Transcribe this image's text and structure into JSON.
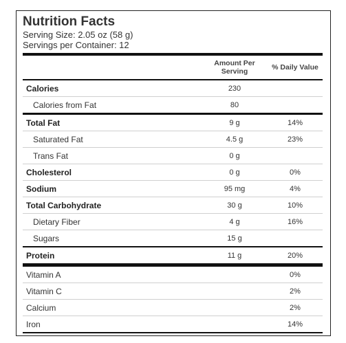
{
  "label": {
    "title": "Nutrition Facts",
    "serving_size": "Serving Size: 2.05 oz (58 g)",
    "servings_per_container": "Servings per Container: 12"
  },
  "table": {
    "headers": {
      "amount": "Amount Per Serving",
      "daily_value": "% Daily Value"
    },
    "rows": [
      {
        "name": "Calories",
        "amount": "230",
        "dv": ""
      },
      {
        "name": "Calories from Fat",
        "amount": "80",
        "dv": ""
      },
      {
        "name": "Total Fat",
        "amount": "9 g",
        "dv": "14%"
      },
      {
        "name": "Saturated Fat",
        "amount": "4.5 g",
        "dv": "23%"
      },
      {
        "name": "Trans Fat",
        "amount": "0 g",
        "dv": ""
      },
      {
        "name": "Cholesterol",
        "amount": "0 g",
        "dv": "0%"
      },
      {
        "name": "Sodium",
        "amount": "95 mg",
        "dv": "4%"
      },
      {
        "name": "Total Carbohydrate",
        "amount": "30 g",
        "dv": "10%"
      },
      {
        "name": "Dietary Fiber",
        "amount": "4 g",
        "dv": "16%"
      },
      {
        "name": "Sugars",
        "amount": "15 g",
        "dv": ""
      },
      {
        "name": "Protein",
        "amount": "11 g",
        "dv": "20%"
      },
      {
        "name": "Vitamin A",
        "amount": "",
        "dv": "0%"
      },
      {
        "name": "Vitamin C",
        "amount": "",
        "dv": "2%"
      },
      {
        "name": "Calcium",
        "amount": "",
        "dv": "2%"
      },
      {
        "name": "Iron",
        "amount": "",
        "dv": "14%"
      }
    ]
  }
}
